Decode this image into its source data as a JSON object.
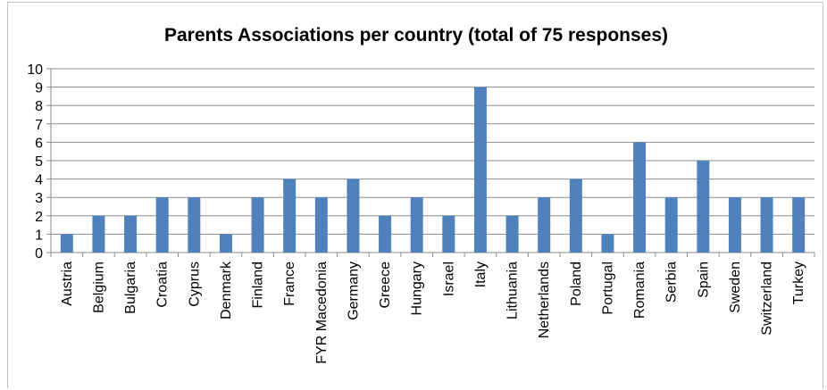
{
  "chart_data": {
    "type": "bar",
    "title": "Parents Associations per country (total of 75 responses)",
    "xlabel": "",
    "ylabel": "",
    "ylim": [
      0,
      10
    ],
    "yticks": [
      0,
      1,
      2,
      3,
      4,
      5,
      6,
      7,
      8,
      9,
      10
    ],
    "grid": true,
    "legend": "none",
    "bar_color": "#4f81bd",
    "categories": [
      "Austria",
      "Belgium",
      "Bulgaria",
      "Croatia",
      "Cyprus",
      "Denmark",
      "Finland",
      "France",
      "FYR Macedonia",
      "Germany",
      "Greece",
      "Hungary",
      "Israel",
      "Italy",
      "Lithuania",
      "Netherlands",
      "Poland",
      "Portugal",
      "Romania",
      "Serbia",
      "Spain",
      "Sweden",
      "Switzerland",
      "Turkey"
    ],
    "values": [
      1,
      2,
      2,
      3,
      3,
      1,
      3,
      4,
      3,
      4,
      2,
      3,
      2,
      9,
      2,
      3,
      4,
      1,
      6,
      3,
      5,
      3,
      3,
      3
    ]
  }
}
